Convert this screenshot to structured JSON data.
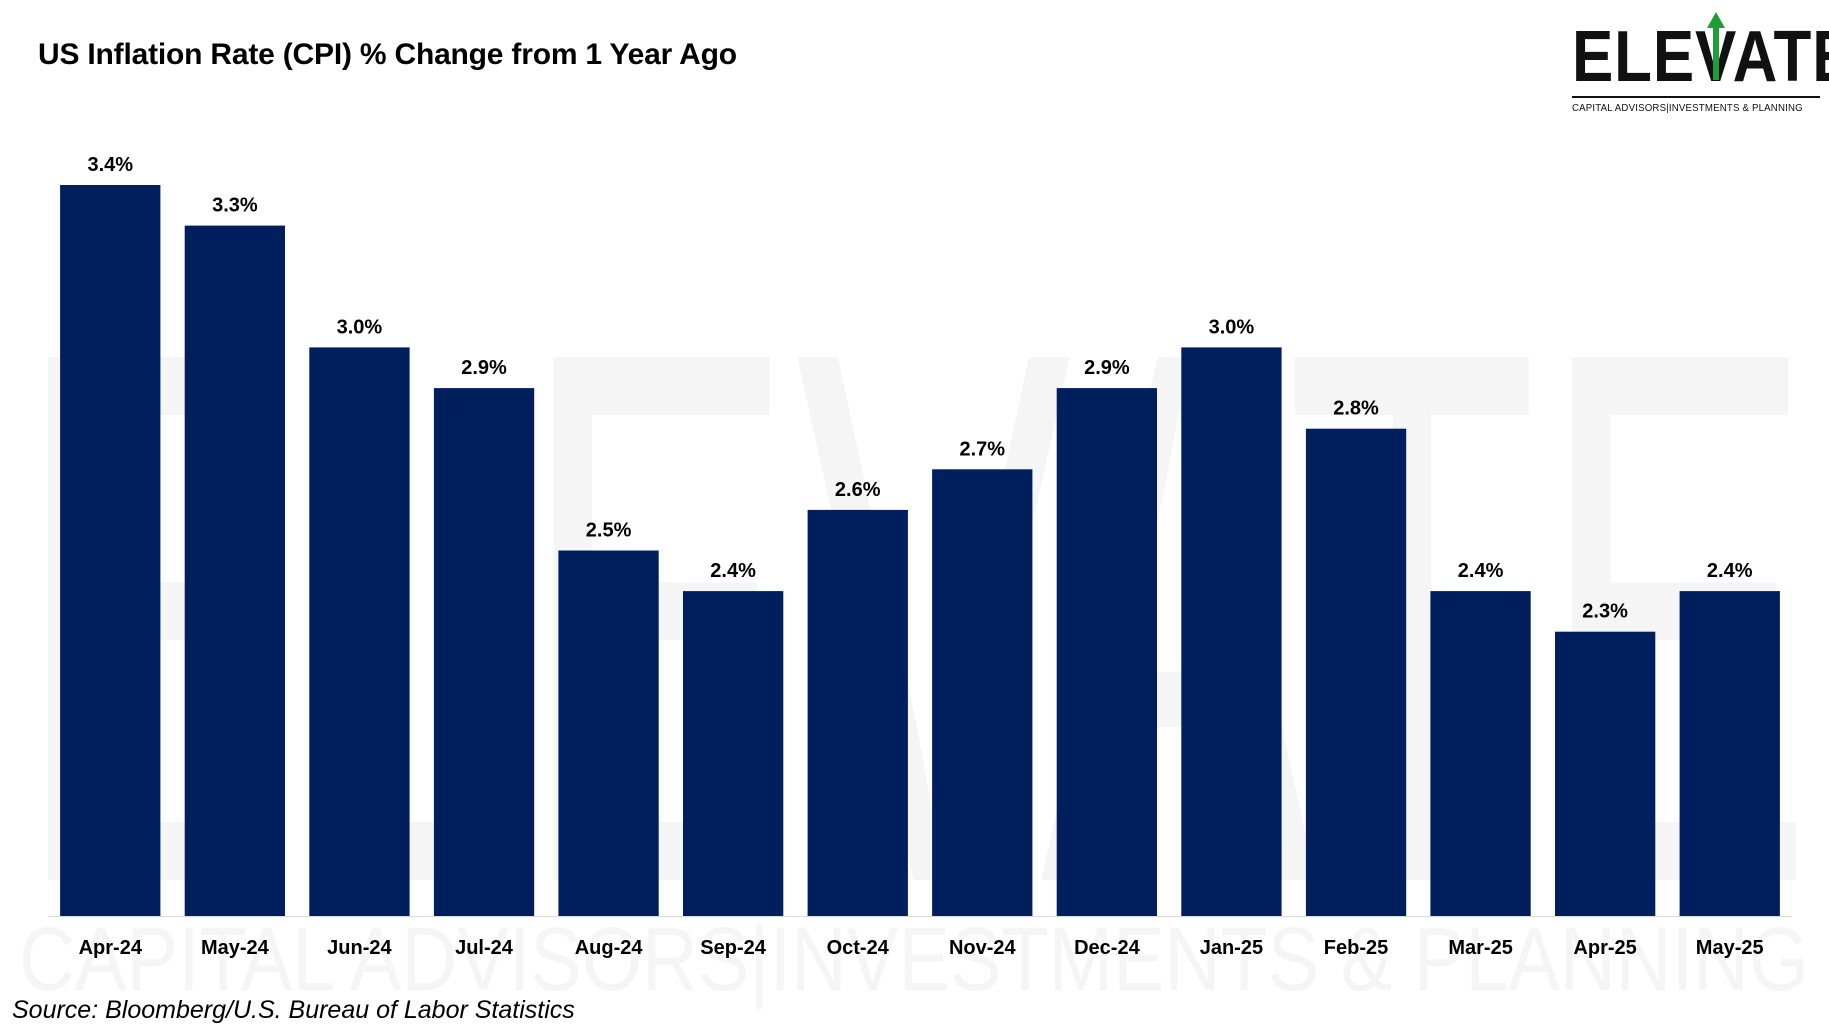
{
  "title": "US Inflation Rate (CPI) % Change from 1 Year Ago",
  "source": "Source: Bloomberg/U.S. Bureau of Labor Statistics",
  "logo": {
    "word": "ELEVATE",
    "tagline": "CAPITAL ADVISORS|INVESTMENTS & PLANNING"
  },
  "watermark": {
    "word": "ELEVATE",
    "tagline": "CAPITAL ADVISORS|INVESTMENTS & PLANNING"
  },
  "colors": {
    "bar": "#001F5C",
    "arrow_green": "#1E9E3A",
    "watermark": "#F4F4F4"
  },
  "chart_data": {
    "type": "bar",
    "categories": [
      "Apr-24",
      "May-24",
      "Jun-24",
      "Jul-24",
      "Aug-24",
      "Sep-24",
      "Oct-24",
      "Nov-24",
      "Dec-24",
      "Jan-25",
      "Feb-25",
      "Mar-25",
      "Apr-25",
      "May-25"
    ],
    "values": [
      3.4,
      3.3,
      3.0,
      2.9,
      2.5,
      2.4,
      2.6,
      2.7,
      2.9,
      3.0,
      2.8,
      2.4,
      2.3,
      2.4
    ],
    "value_labels": [
      "3.4%",
      "3.3%",
      "3.0%",
      "2.9%",
      "2.5%",
      "2.4%",
      "2.6%",
      "2.7%",
      "2.9%",
      "3.0%",
      "2.8%",
      "2.4%",
      "2.3%",
      "2.4%"
    ],
    "title": "US Inflation Rate (CPI) % Change from 1 Year Ago",
    "xlabel": "",
    "ylabel": "",
    "ylim": [
      1.6,
      3.4
    ],
    "grid": false,
    "legend": "none",
    "y_axis_visible": false
  }
}
